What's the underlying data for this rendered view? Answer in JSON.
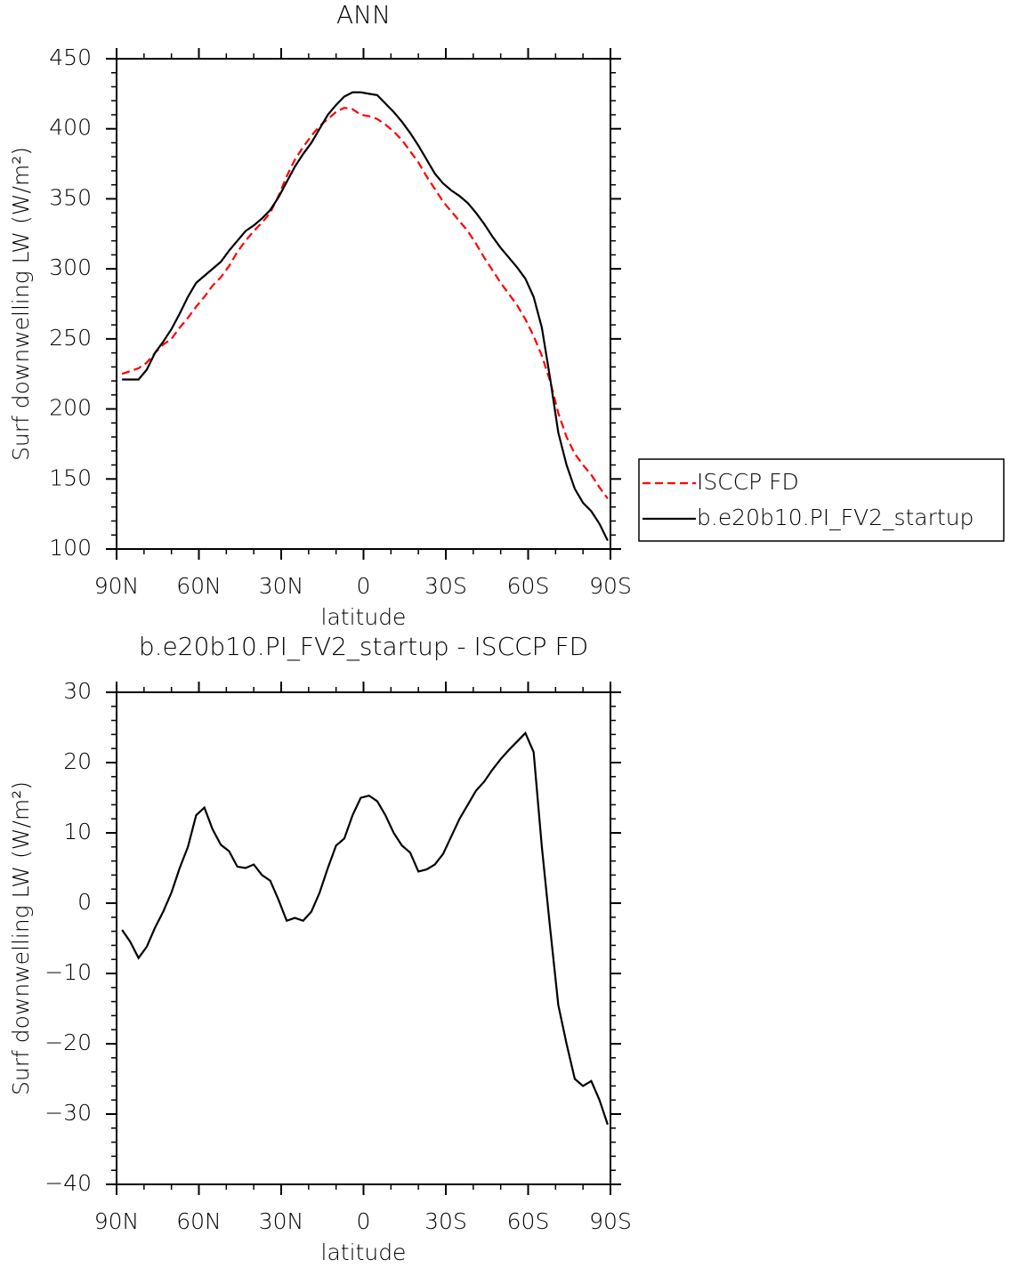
{
  "chart_data": [
    {
      "type": "line",
      "title": "ANN",
      "xlabel": "latitude",
      "ylabel": "Surf downwelling LW (W/m²)",
      "x": [
        88,
        85,
        82,
        79,
        76,
        73,
        70,
        67,
        64,
        61,
        58,
        55,
        52,
        49,
        46,
        43,
        40,
        37,
        34,
        31,
        28,
        25,
        22,
        19,
        16,
        13,
        10,
        7,
        4,
        1,
        -2,
        -5,
        -8,
        -11,
        -14,
        -17,
        -20,
        -23,
        -26,
        -29,
        -32,
        -35,
        -38,
        -41,
        -44,
        -47,
        -50,
        -53,
        -56,
        -59,
        -62,
        -65,
        -68,
        -71,
        -74,
        -77,
        -80,
        -83,
        -86,
        -89
      ],
      "series": [
        {
          "name": "ISCCP FD",
          "color": "#ff0000",
          "linestyle": "dashed",
          "values": [
            225,
            227,
            229,
            233,
            240,
            246,
            250,
            258,
            265,
            273,
            280,
            288,
            294,
            302,
            312,
            320,
            327,
            333,
            340,
            352,
            366,
            378,
            387,
            395,
            402,
            407,
            412,
            415,
            414,
            410,
            409,
            407,
            403,
            398,
            392,
            384,
            376,
            366,
            357,
            348,
            341,
            334,
            327,
            318,
            308,
            299,
            290,
            282,
            274,
            264,
            252,
            238,
            220,
            197,
            180,
            168,
            160,
            153,
            144,
            136
          ]
        },
        {
          "name": "b.e20b10.PI_FV2_startup",
          "color": "#000000",
          "linestyle": "solid",
          "values": [
            221,
            221,
            221,
            228,
            240,
            248,
            257,
            268,
            280,
            290,
            295,
            300,
            305,
            313,
            320,
            327,
            331,
            336,
            342,
            351,
            362,
            373,
            382,
            390,
            400,
            410,
            417,
            423,
            426,
            426,
            425,
            424,
            418,
            412,
            405,
            397,
            388,
            378,
            368,
            361,
            356,
            352,
            347,
            340,
            332,
            323,
            315,
            308,
            301,
            293,
            280,
            258,
            222,
            183,
            160,
            143,
            133,
            127,
            118,
            106
          ]
        }
      ],
      "xlim": [
        90,
        -90
      ],
      "xticks": [
        {
          "value": 90,
          "label": "90N"
        },
        {
          "value": 60,
          "label": "60N"
        },
        {
          "value": 30,
          "label": "30N"
        },
        0,
        {
          "value": -30,
          "label": "30S"
        },
        {
          "value": -60,
          "label": "60S"
        },
        {
          "value": -90,
          "label": "90S"
        }
      ],
      "ylim": [
        100,
        450
      ],
      "yticks": [
        100,
        150,
        200,
        250,
        300,
        350,
        400,
        450
      ],
      "legend": "right"
    },
    {
      "type": "line",
      "title": "b.e20b10.PI_FV2_startup - ISCCP FD",
      "xlabel": "latitude",
      "ylabel": "Surf downwelling LW (W/m²)",
      "x": [
        88,
        85,
        82,
        79,
        76,
        73,
        70,
        67,
        64,
        61,
        58,
        55,
        52,
        49,
        46,
        43,
        40,
        37,
        34,
        31,
        28,
        25,
        22,
        19,
        16,
        13,
        10,
        7,
        4,
        1,
        -2,
        -5,
        -8,
        -11,
        -14,
        -17,
        -20,
        -23,
        -26,
        -29,
        -32,
        -35,
        -38,
        -41,
        -44,
        -47,
        -50,
        -53,
        -56,
        -59,
        -62,
        -65,
        -68,
        -71,
        -74,
        -77,
        -80,
        -83,
        -86,
        -89
      ],
      "color": "#000000",
      "linestyle": "solid",
      "values": [
        -3.8,
        -5.5,
        -7.8,
        -6.2,
        -3.5,
        -1.2,
        1.5,
        5,
        8,
        12.5,
        13.6,
        10.5,
        8.3,
        7.4,
        5.2,
        5,
        5.5,
        4,
        3.2,
        0.5,
        -2.5,
        -2.1,
        -2.5,
        -1.2,
        1.5,
        5,
        8.2,
        9.2,
        12.5,
        15,
        15.3,
        14.5,
        12.5,
        10,
        8.2,
        7.2,
        4.5,
        4.8,
        5.5,
        7,
        9.5,
        12,
        14,
        16,
        17.3,
        19,
        20.5,
        21.8,
        23,
        24.2,
        21.5,
        8,
        -3.5,
        -14.5,
        -20,
        -25,
        -26,
        -25.3,
        -28,
        -31.5
      ],
      "xlim": [
        90,
        -90
      ],
      "xticks": [
        {
          "value": 90,
          "label": "90N"
        },
        {
          "value": 60,
          "label": "60N"
        },
        {
          "value": 30,
          "label": "30N"
        },
        0,
        {
          "value": -30,
          "label": "30S"
        },
        {
          "value": -60,
          "label": "60S"
        },
        {
          "value": -90,
          "label": "90S"
        }
      ],
      "ylim": [
        -40,
        30
      ],
      "yticks": [
        {
          "value": -40,
          "label": "−40"
        },
        {
          "value": -30,
          "label": "−30"
        },
        {
          "value": -20,
          "label": "−20"
        },
        {
          "value": -10,
          "label": "−10"
        },
        0,
        10,
        20,
        30
      ]
    }
  ]
}
